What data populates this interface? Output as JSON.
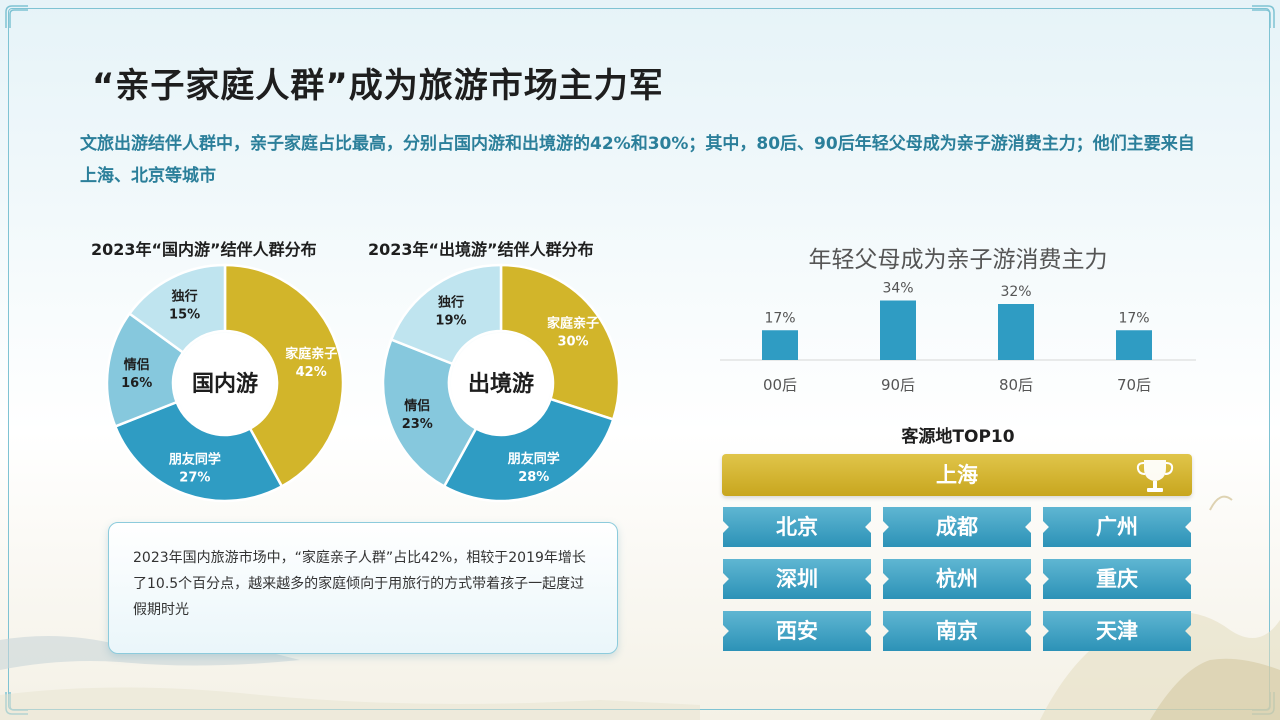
{
  "title": "“亲子家庭人群”成为旅游市场主力军",
  "subtitle": "文旅出游结伴人群中，亲子家庭占比最高，分别占国内游和出境游的42%和30%；其中，80后、90后年轻父母成为亲子游消费主力；他们主要来自上海、北京等城市",
  "info_text": "2023年国内旅游市场中，“家庭亲子人群”占比42%，相较于2019年增长了10.5个百分点，越来越多的家庭倾向于用旅行的方式带着孩子一起度过假期时光",
  "top10": {
    "title": "客源地TOP10",
    "first": "上海",
    "cities": [
      "北京",
      "成都",
      "广州",
      "深圳",
      "杭州",
      "重庆",
      "西安",
      "南京",
      "天津"
    ]
  },
  "colors": {
    "gold": "#d2b52a",
    "blue_dark": "#2f9cc3",
    "blue_mid": "#86c8dd",
    "blue_light": "#bfe4ef",
    "title_teal": "#2b7f9a"
  },
  "chart_data": [
    {
      "type": "pie",
      "title": "2023年“国内游”结伴人群分布",
      "center_label": "国内游",
      "slices": [
        {
          "label": "家庭亲子",
          "value": 42
        },
        {
          "label": "朋友同学",
          "value": 27
        },
        {
          "label": "情侣",
          "value": 16
        },
        {
          "label": "独行",
          "value": 15
        }
      ]
    },
    {
      "type": "pie",
      "title": "2023年“出境游”结伴人群分布",
      "center_label": "出境游",
      "slices": [
        {
          "label": "家庭亲子",
          "value": 30
        },
        {
          "label": "朋友同学",
          "value": 28
        },
        {
          "label": "情侣",
          "value": 23
        },
        {
          "label": "独行",
          "value": 19
        }
      ]
    },
    {
      "type": "bar",
      "title": "年轻父母成为亲子游消费主力",
      "categories": [
        "00后",
        "90后",
        "80后",
        "70后"
      ],
      "values": [
        17,
        34,
        32,
        17
      ],
      "unit": "%",
      "ylim": [
        0,
        40
      ]
    }
  ]
}
